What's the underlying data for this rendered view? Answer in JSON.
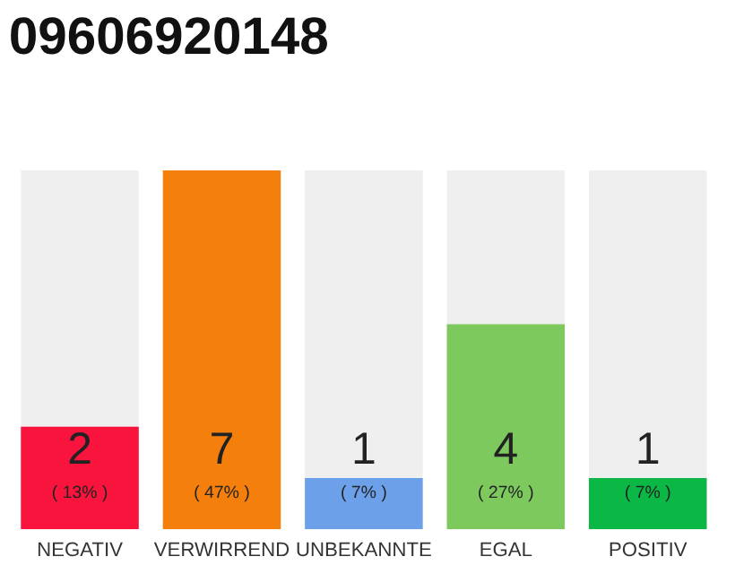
{
  "chart_data": {
    "type": "bar",
    "title": "09606920148",
    "categories": [
      "NEGATIV",
      "VERWIRREND",
      "UNBEKANNTE",
      "EGAL",
      "POSITIV"
    ],
    "values": [
      2,
      7,
      1,
      4,
      1
    ],
    "colors": [
      "#f8143c",
      "#f47f0c",
      "#6ca0e8",
      "#7dc95e",
      "#0bb845"
    ],
    "ylim": [
      0,
      7
    ],
    "data_labels": true,
    "tick_labels": "x",
    "grid": false,
    "legend": false,
    "annotations": [
      "( 13% )",
      "( 47% )",
      "( 7% )",
      "( 27% )",
      "( 7% )"
    ]
  }
}
